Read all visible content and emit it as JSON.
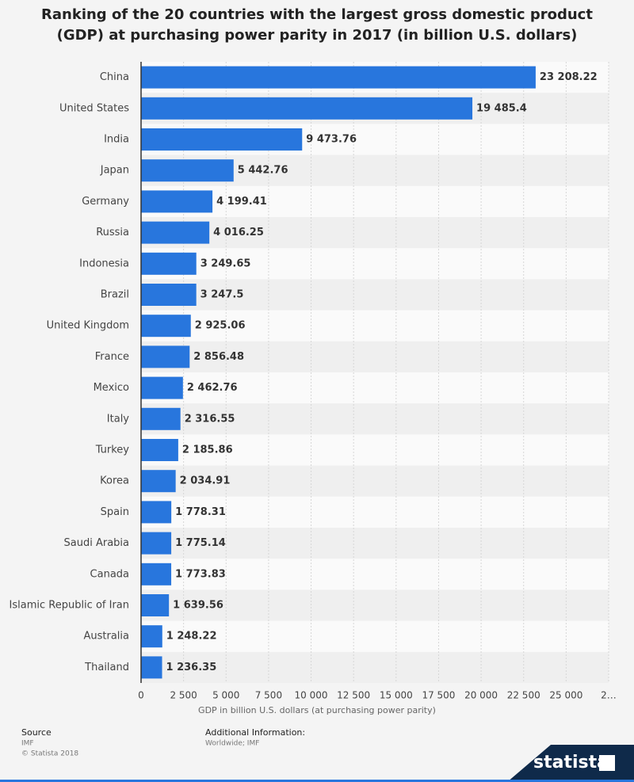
{
  "chart_data": {
    "type": "bar",
    "orientation": "horizontal",
    "title": "Ranking of the 20 countries with the largest gross domestic product (GDP) at purchasing power parity in 2017 (in billion U.S. dollars)",
    "x_label": "GDP in billion U.S. dollars (at purchasing power parity)",
    "categories": [
      "China",
      "United States",
      "India",
      "Japan",
      "Germany",
      "Russia",
      "Indonesia",
      "Brazil",
      "United Kingdom",
      "France",
      "Mexico",
      "Italy",
      "Turkey",
      "Korea",
      "Spain",
      "Saudi Arabia",
      "Canada",
      "Islamic Republic of Iran",
      "Australia",
      "Thailand"
    ],
    "values": [
      23208.22,
      19485.4,
      9473.76,
      5442.76,
      4199.41,
      4016.25,
      3249.65,
      3247.5,
      2925.06,
      2856.48,
      2462.76,
      2316.55,
      2185.86,
      2034.91,
      1778.31,
      1775.14,
      1773.83,
      1639.56,
      1248.22,
      1236.35
    ],
    "value_labels": [
      "23 208.22",
      "19 485.4",
      "9 473.76",
      "5 442.76",
      "4 199.41",
      "4 016.25",
      "3 249.65",
      "3 247.5",
      "2 925.06",
      "2 856.48",
      "2 462.76",
      "2 316.55",
      "2 185.86",
      "2 034.91",
      "1 778.31",
      "1 775.14",
      "1 773.83",
      "1 639.56",
      "1 248.22",
      "1 236.35"
    ],
    "color": "#2876dd",
    "xlim": [
      0,
      27500
    ],
    "xticks": [
      0,
      {
        "value": 2500,
        "label": "2 500"
      },
      {
        "value": 5000,
        "label": "5 000"
      },
      {
        "value": 7500,
        "label": "7 500"
      },
      {
        "value": 10000,
        "label": "10 000"
      },
      {
        "value": 12500,
        "label": "12 500"
      },
      {
        "value": 15000,
        "label": "15 000"
      },
      {
        "value": 17500,
        "label": "17 500"
      },
      {
        "value": 20000,
        "label": "20 000"
      },
      {
        "value": 22500,
        "label": "22 500"
      },
      {
        "value": 25000,
        "label": "25 000"
      },
      {
        "value": 27500,
        "label": "2…"
      }
    ],
    "grid": true
  },
  "footer": {
    "source_heading": "Source",
    "source": "IMF",
    "copyright": "© Statista 2018",
    "info_heading": "Additional Information:",
    "info": "Worldwide; IMF",
    "logo": "statista"
  }
}
